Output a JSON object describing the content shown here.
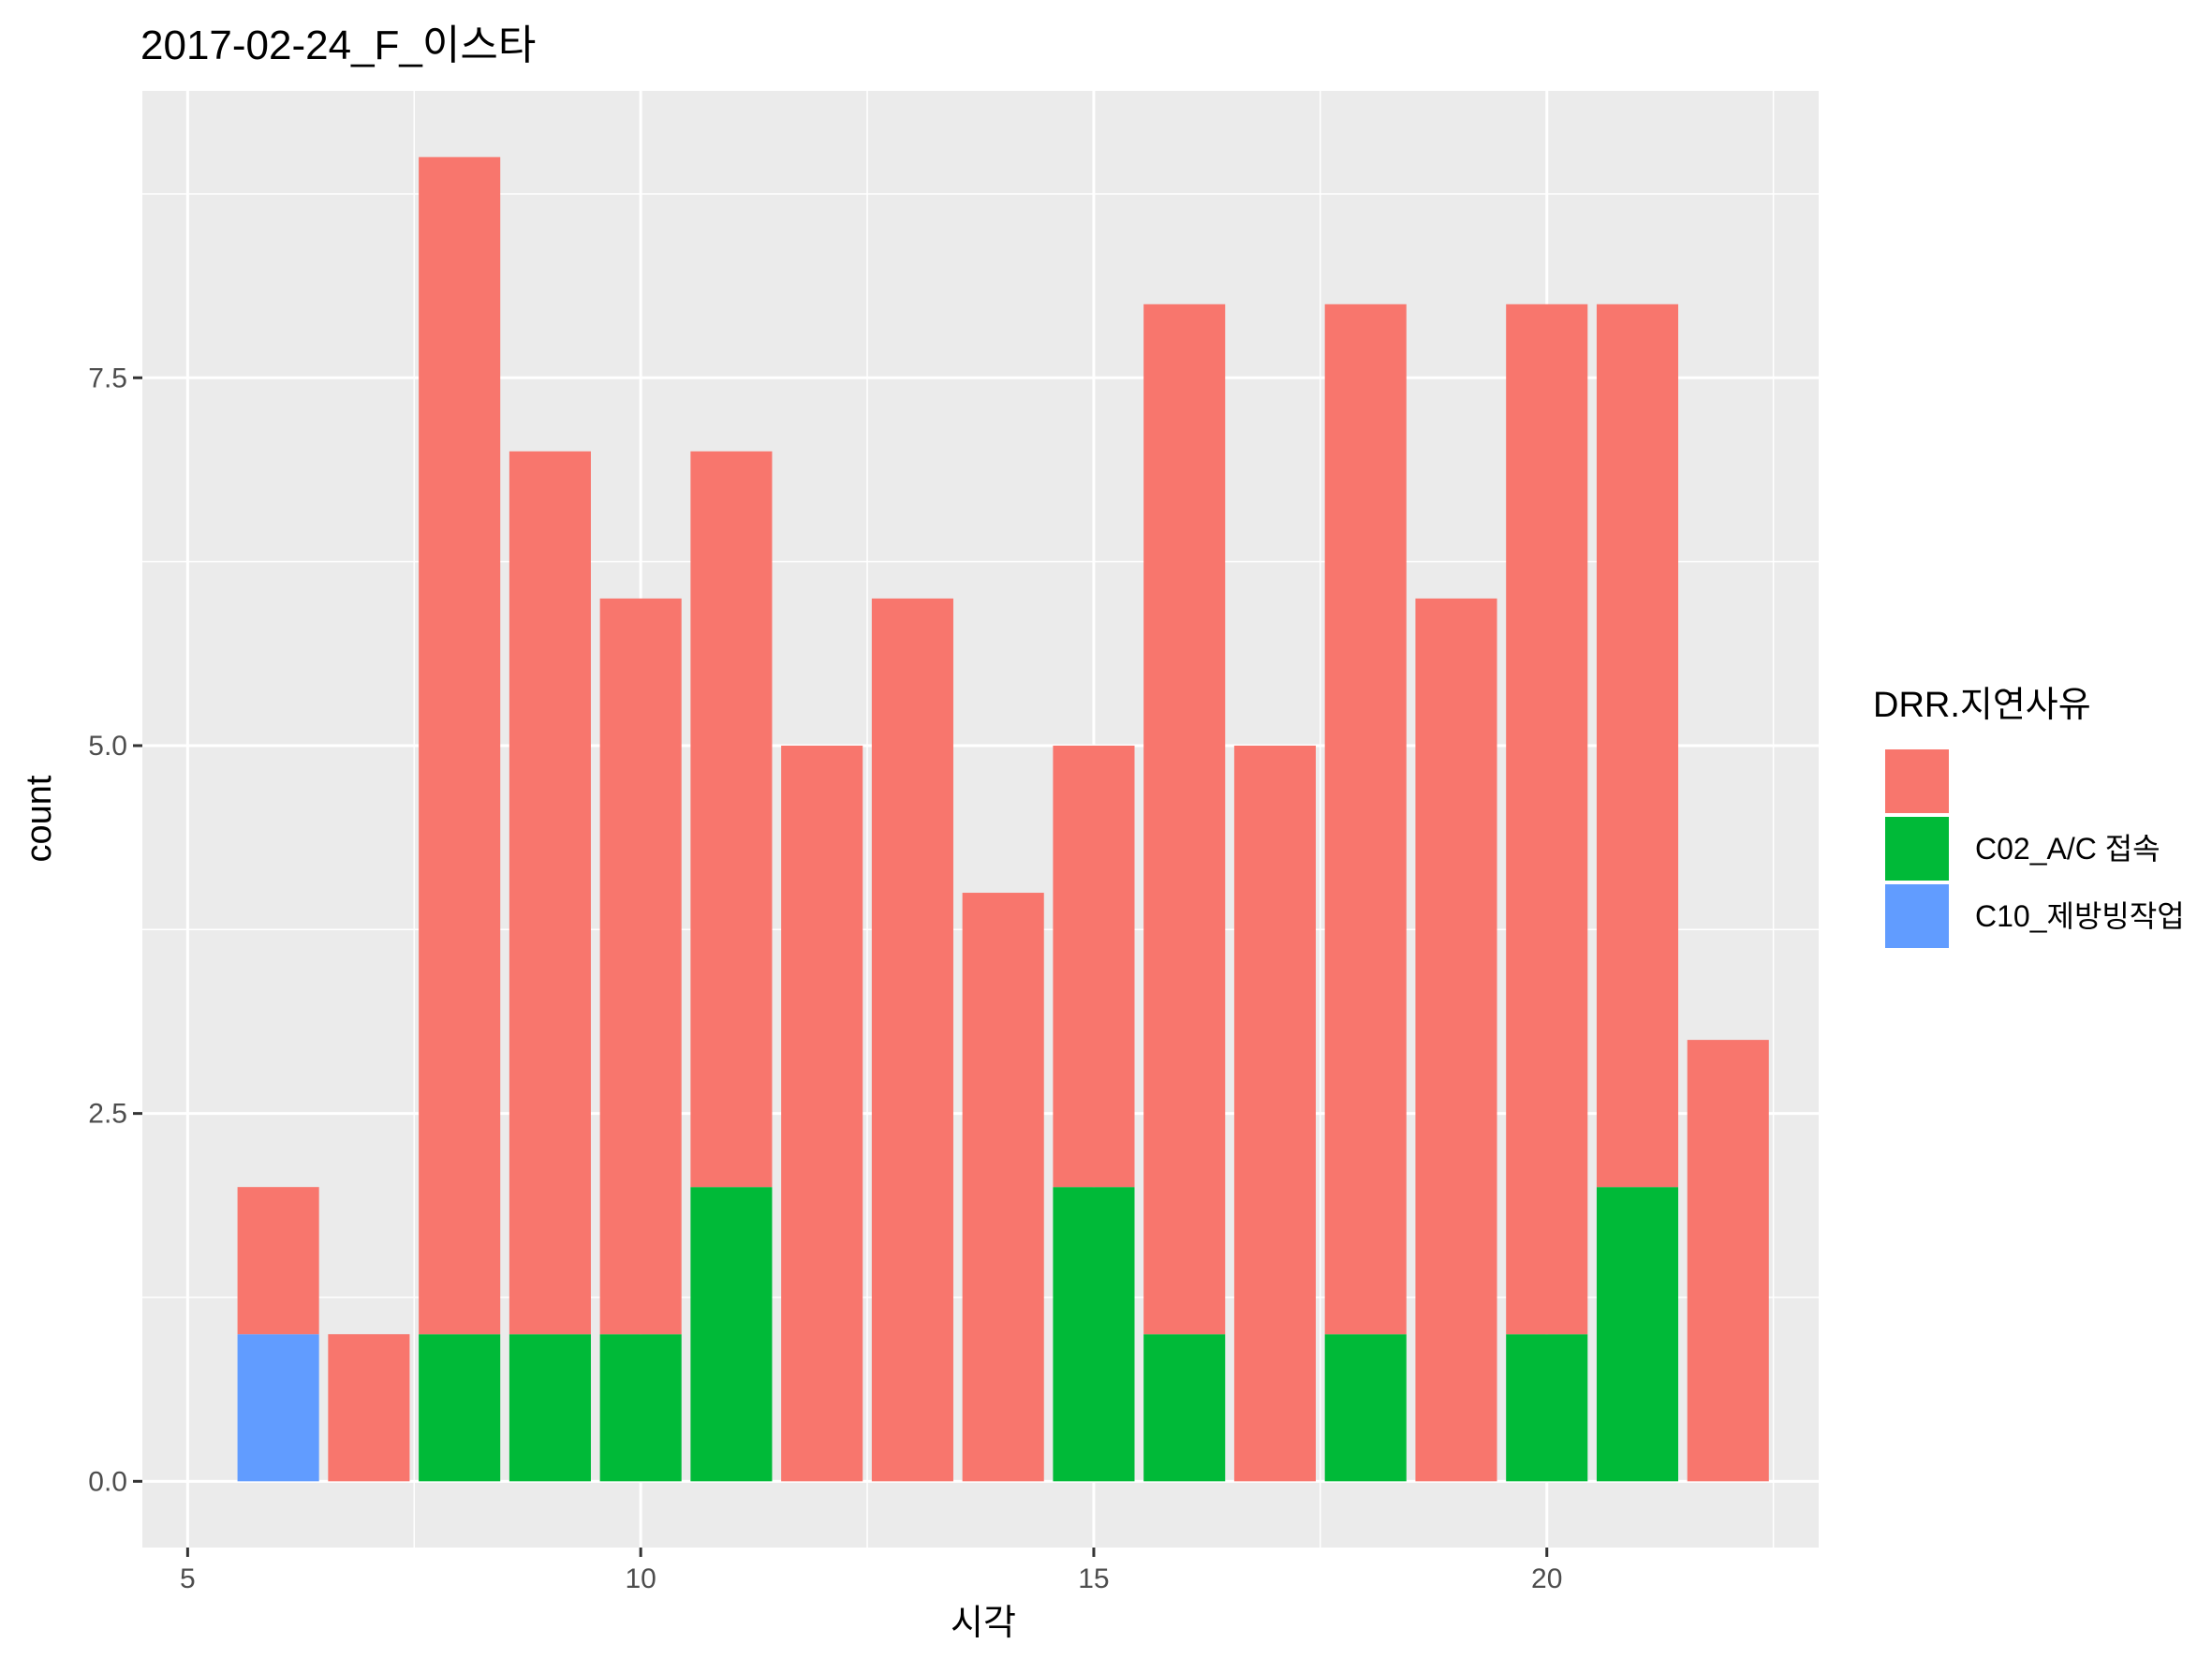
{
  "chart_data": {
    "type": "bar",
    "stacked": true,
    "title": "2017-02-24_F_이스타",
    "xlabel": "시각",
    "ylabel": "count",
    "xlim": [
      4.5,
      23.0
    ],
    "ylim": [
      -0.45,
      9.45
    ],
    "x_ticks": [
      5,
      10,
      15,
      20
    ],
    "y_ticks": [
      0.0,
      2.5,
      5.0,
      7.5
    ],
    "x_tick_labels": [
      "5",
      "10",
      "15",
      "20"
    ],
    "y_tick_labels": [
      "0.0",
      "2.5",
      "5.0",
      "7.5"
    ],
    "grid": true,
    "legend": {
      "title": "DRR.지연사유",
      "placement": "right"
    },
    "x": [
      6,
      7,
      8,
      9,
      10,
      11,
      12,
      13,
      14,
      15,
      16,
      17,
      18,
      19,
      20,
      21,
      22
    ],
    "series": [
      {
        "name": "",
        "color": "#F8766D",
        "values": [
          1,
          1,
          8,
          6,
          5,
          5,
          5,
          6,
          4,
          3,
          7,
          5,
          7,
          6,
          7,
          6,
          3
        ]
      },
      {
        "name": "C02_A/C 접속",
        "color": "#00BA38",
        "values": [
          0,
          0,
          1,
          1,
          1,
          2,
          0,
          0,
          0,
          2,
          1,
          0,
          1,
          0,
          1,
          2,
          0
        ]
      },
      {
        "name": "C10_제방빙작업",
        "color": "#619CFF",
        "values": [
          1,
          0,
          0,
          0,
          0,
          0,
          0,
          0,
          0,
          0,
          0,
          0,
          0,
          0,
          0,
          0,
          0
        ]
      }
    ],
    "stack_order_bottom_to_top": [
      "C10_제방빙작업",
      "C02_A/C 접속",
      ""
    ]
  }
}
